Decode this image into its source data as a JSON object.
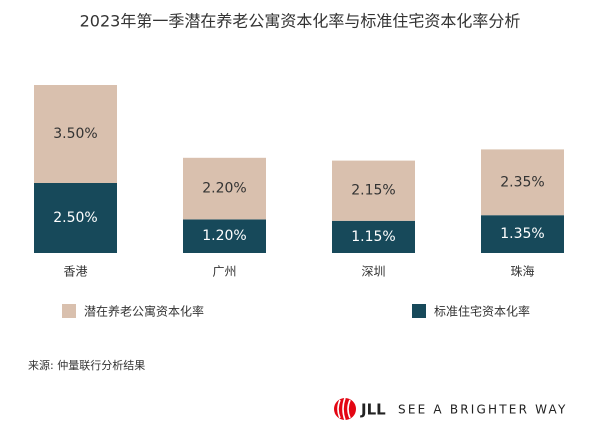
{
  "chart_data": {
    "type": "bar",
    "stacked": true,
    "title": "2023年第一季潜在养老公寓资本化率与标准住宅资本化率分析",
    "categories": [
      "香港",
      "广州",
      "深圳",
      "珠海"
    ],
    "series": [
      {
        "name": "标准住宅资本化率",
        "color": "#17495a",
        "label_color": "#ffffff",
        "values": [
          2.5,
          1.2,
          1.15,
          1.35
        ],
        "value_labels": [
          "2.50%",
          "1.20%",
          "1.15%",
          "1.35%"
        ]
      },
      {
        "name": "潜在养老公寓资本化率",
        "color": "#d9c0ae",
        "label_color": "#333333",
        "values": [
          3.5,
          2.2,
          2.15,
          2.35
        ],
        "value_labels": [
          "3.50%",
          "2.20%",
          "2.15%",
          "2.35%"
        ]
      }
    ],
    "source": "来源: 仲量联行分析结果"
  },
  "brand": {
    "logo": "JLL",
    "tagline": "SEE A BRIGHTER WAY"
  }
}
